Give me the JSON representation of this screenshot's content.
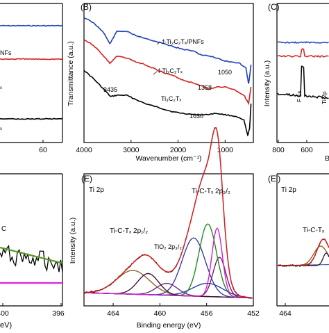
{
  "chart_data": [
    {
      "panel": "A-partial",
      "type": "line",
      "xlabel": "",
      "ylabel": "",
      "xticks": [
        60
      ],
      "series_labels": [
        "NFs",
        "x",
        "x"
      ],
      "series_colors": [
        "#1f3fb6",
        "#d42020",
        "#000000"
      ],
      "series": [
        {
          "name": "NFs",
          "color": "#1f3fb6",
          "x": [
            0,
            90
          ],
          "y": [
            0.84,
            0.84
          ]
        },
        {
          "name": "",
          "color": "#d42020",
          "x": [
            0,
            90
          ],
          "y": [
            0.6,
            0.6
          ]
        },
        {
          "name": "",
          "color": "#000000",
          "x": [
            0,
            90
          ],
          "y": [
            0.17,
            0.17
          ]
        }
      ]
    },
    {
      "panel": "B",
      "label": "(B)",
      "type": "line",
      "xlabel": "Wavenumber (cm⁻¹)",
      "ylabel": "Transmittance (a.u.)",
      "xlim": [
        4000,
        400
      ],
      "xticks": [
        4000,
        3000,
        2000,
        1000
      ],
      "xtick_labels": [
        "4000",
        "3000",
        "2000",
        "1000"
      ],
      "series": [
        {
          "name": "f-Ti₃C₂Tₓ/PNFs",
          "color": "#1f3fb6",
          "x": [
            4000,
            3800,
            3600,
            3450,
            3300,
            3100,
            2900,
            2700,
            2500,
            2300,
            2100,
            1900,
            1700,
            1500,
            1300,
            1100,
            1050,
            900,
            700,
            560,
            500,
            450
          ],
          "y": [
            0.9,
            0.86,
            0.8,
            0.71,
            0.8,
            0.8,
            0.77,
            0.75,
            0.73,
            0.71,
            0.69,
            0.67,
            0.66,
            0.63,
            0.62,
            0.6,
            0.59,
            0.58,
            0.57,
            0.54,
            0.42,
            0.56
          ]
        },
        {
          "name": "f-Ti₃C₂Tₓ",
          "color": "#d42020",
          "x": [
            4000,
            3800,
            3600,
            3450,
            3300,
            3100,
            2900,
            2700,
            2500,
            2300,
            2100,
            1900,
            1700,
            1500,
            1358,
            1200,
            1000,
            800,
            600,
            500,
            450
          ],
          "y": [
            0.74,
            0.7,
            0.63,
            0.57,
            0.62,
            0.61,
            0.58,
            0.56,
            0.53,
            0.5,
            0.48,
            0.45,
            0.43,
            0.41,
            0.38,
            0.4,
            0.4,
            0.38,
            0.34,
            0.28,
            0.4
          ]
        },
        {
          "name": "Ti₃C₂Tₓ",
          "color": "#000000",
          "x": [
            4000,
            3800,
            3600,
            3435,
            3300,
            3100,
            2900,
            2700,
            2500,
            2300,
            2100,
            1900,
            1630,
            1400,
            1200,
            1000,
            800,
            600,
            520,
            480,
            450
          ],
          "y": [
            0.52,
            0.46,
            0.39,
            0.33,
            0.34,
            0.34,
            0.31,
            0.28,
            0.26,
            0.24,
            0.22,
            0.21,
            0.2,
            0.2,
            0.21,
            0.2,
            0.19,
            0.16,
            0.05,
            0.1,
            0.28
          ]
        }
      ],
      "annotations": [
        {
          "text": "f-Ti₃C₂Tₓ/PNFs",
          "series": 0
        },
        {
          "text": "f-Ti₃C₂Tₓ",
          "series": 1
        },
        {
          "text": "Ti₃C₂Tₓ",
          "series": 2
        },
        {
          "text": "3435",
          "x": 3435
        },
        {
          "text": "1358",
          "x": 1358
        },
        {
          "text": "1050",
          "x": 1050
        },
        {
          "text": "1630",
          "x": 1630
        }
      ]
    },
    {
      "panel": "C-partial",
      "label": "(C)",
      "type": "line",
      "ylabel": "Intensity (a.u.)",
      "xlabel": "B",
      "xticks": [
        800,
        600
      ],
      "xtick_labels": [
        "800",
        "600"
      ],
      "peak_labels": [
        "F 1s",
        "Ti 2p"
      ],
      "series": [
        {
          "name": "",
          "color": "#1f3fb6",
          "y": 0.72
        },
        {
          "name": "",
          "color": "#d42020",
          "y": 0.62
        },
        {
          "name": "",
          "color": "#000000",
          "y": 0.35
        }
      ]
    },
    {
      "panel": "D-partial",
      "type": "line",
      "xlabel": "eV)",
      "xticks": [
        400,
        396
      ],
      "xtick_labels": [
        "400",
        "396"
      ],
      "annotation": "C",
      "series": [
        {
          "name": "",
          "color": "#000000"
        },
        {
          "name": "",
          "color": "#5a9a28"
        },
        {
          "name": "",
          "color": "#e020e0"
        }
      ]
    },
    {
      "panel": "E",
      "label": "(E)",
      "type": "line",
      "title": "Ti 2p",
      "xlabel": "Binding energy (eV)",
      "ylabel": "Intensity (a.u.)",
      "xlim": [
        466.5,
        452
      ],
      "xticks": [
        464,
        460,
        456,
        452
      ],
      "xtick_labels": [
        "464",
        "460",
        "456",
        "452"
      ],
      "baseline": {
        "x": [
          466.5,
          452
        ],
        "y": [
          0.06,
          0.02
        ]
      },
      "components": [
        {
          "name": "",
          "color": "#1f3fb6",
          "center": 455.9,
          "height": 0.1,
          "width": 1.3
        },
        {
          "name": "",
          "color": "#7a1a7a",
          "center": 454.9,
          "height": 0.3,
          "width": 0.55
        },
        {
          "name": "",
          "color": "#208a20",
          "center": 455.9,
          "height": 0.55,
          "width": 0.75
        },
        {
          "name": "",
          "color": "#3a3fa0",
          "center": 457.1,
          "height": 0.44,
          "width": 1.0
        },
        {
          "name": "",
          "color": "#6a2a8a",
          "center": 459.4,
          "height": 0.09,
          "width": 0.9
        },
        {
          "name": "",
          "color": "#8a6a2a",
          "center": 462.3,
          "height": 0.18,
          "width": 1.4
        },
        {
          "name": "",
          "color": "#3a1a3a",
          "center": 461.0,
          "height": 0.16,
          "width": 0.9
        },
        {
          "name": "",
          "color": "#d020d0",
          "center": 455.1,
          "height": 0.52,
          "width": 0.45
        }
      ],
      "envelope_color": "#d42020",
      "data_color": "#000000",
      "peak_labels": [
        {
          "text": "Ti-C-Tₓ 2p₃/₂",
          "x": 455.9
        },
        {
          "text": "Ti-C-Tₓ 2p₁/₂",
          "x": 462.0
        },
        {
          "text": "TiO₂ 2p₃/₂",
          "x": 459.0
        }
      ]
    },
    {
      "panel": "E'-partial",
      "label": "(E')",
      "type": "line",
      "title": "Ti 2p",
      "xticks": [
        464
      ],
      "xtick_labels": [
        "464"
      ],
      "peak_labels": [
        "Ti-C-Tₓ"
      ]
    }
  ]
}
